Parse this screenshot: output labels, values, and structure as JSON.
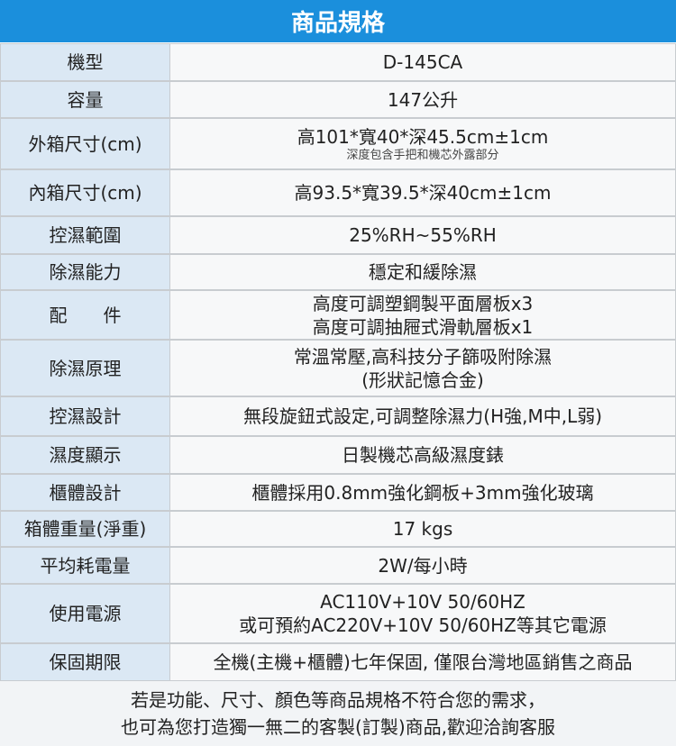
{
  "header": {
    "title": "商品規格"
  },
  "table": {
    "rows": [
      {
        "label": "機型",
        "lines": [
          "D-145CA"
        ]
      },
      {
        "label": "容量",
        "lines": [
          "147公升"
        ]
      },
      {
        "label": "外箱尺寸(cm)",
        "lines": [
          "高101*寬40*深45.5cm±1cm"
        ],
        "note": "深度包含手把和機芯外露部分"
      },
      {
        "label": "內箱尺寸(cm)",
        "lines": [
          "高93.5*寬39.5*深40cm±1cm"
        ]
      },
      {
        "label": "控濕範圍",
        "lines": [
          "25%RH~55%RH"
        ]
      },
      {
        "label": "除濕能力",
        "lines": [
          "穩定和緩除濕"
        ]
      },
      {
        "label": "配　　件",
        "lines": [
          "高度可調塑鋼製平面層板x3",
          "高度可調抽屜式滑軌層板x1"
        ]
      },
      {
        "label": "除濕原理",
        "lines": [
          "常溫常壓,高科技分子篩吸附除濕",
          "(形狀記憶合金)"
        ]
      },
      {
        "label": "控濕設計",
        "lines": [
          "無段旋鈕式設定,可調整除濕力(H強,M中,L弱)"
        ]
      },
      {
        "label": "濕度顯示",
        "lines": [
          "日製機芯高級濕度錶"
        ]
      },
      {
        "label": "櫃體設計",
        "lines": [
          "櫃體採用0.8mm強化鋼板+3mm強化玻璃"
        ]
      },
      {
        "label": "箱體重量(淨重)",
        "lines": [
          "17 kgs"
        ]
      },
      {
        "label": "平均耗電量",
        "lines": [
          "2W/每小時"
        ]
      },
      {
        "label": "使用電源",
        "lines": [
          "AC110V+10V 50/60HZ",
          "或可預約AC220V+10V 50/60HZ等其它電源"
        ]
      },
      {
        "label": "保固期限",
        "lines": [
          "全機(主機+櫃體)七年保固, 僅限台灣地區銷售之商品"
        ]
      }
    ]
  },
  "footer": {
    "lines": [
      "若是功能、尺寸、顏色等商品規格不符合您的需求，",
      "也可為您打造獨一無二的客製(訂製)商品,歡迎洽詢客服"
    ]
  }
}
